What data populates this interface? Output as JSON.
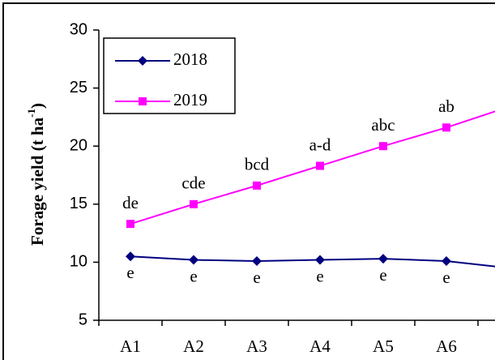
{
  "chart_data": {
    "type": "line",
    "y_label": {
      "text": "Forage yield (t ha",
      "superscript": "-1",
      "suffix": ")"
    },
    "categories": [
      "A1",
      "A2",
      "A3",
      "A4",
      "A5",
      "A6",
      null
    ],
    "series": [
      {
        "name": "2018",
        "color": "#000080",
        "marker": "diamond",
        "values": [
          10.5,
          10.2,
          10.1,
          10.2,
          10.3,
          10.1,
          9.5
        ],
        "value_labels": [
          "e",
          "e",
          "e",
          "e",
          "e",
          "e",
          null
        ]
      },
      {
        "name": "2019",
        "color": "#ff00ff",
        "marker": "square",
        "values": [
          13.3,
          15.0,
          16.6,
          18.3,
          20.0,
          21.6,
          23.4
        ],
        "value_labels": [
          "de",
          "cde",
          "bcd",
          "a-d",
          "abc",
          "ab",
          null
        ]
      }
    ],
    "ylim": [
      5,
      30
    ],
    "yticks": [
      5,
      10,
      15,
      20,
      25,
      30
    ],
    "legend": "upper left"
  }
}
